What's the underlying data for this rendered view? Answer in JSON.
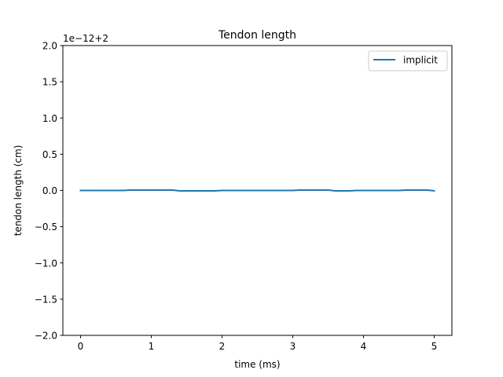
{
  "chart_data": {
    "type": "line",
    "title": "Tendon length",
    "xlabel": "time (ms)",
    "ylabel": "tendon length (cm)",
    "offset_label": "1e−12+2",
    "xlim": [
      -0.25,
      5.25
    ],
    "ylim": [
      -2.0,
      2.0
    ],
    "xticks": [
      0,
      1,
      2,
      3,
      4,
      5
    ],
    "xtick_labels": [
      "0",
      "1",
      "2",
      "3",
      "4",
      "5"
    ],
    "yticks": [
      -2.0,
      -1.5,
      -1.0,
      -0.5,
      0.0,
      0.5,
      1.0,
      1.5,
      2.0
    ],
    "ytick_labels": [
      "−2.0",
      "−1.5",
      "−1.0",
      "−0.5",
      "0.0",
      "0.5",
      "1.0",
      "1.5",
      "2.0"
    ],
    "grid": false,
    "legend_position": "top-right",
    "series": [
      {
        "name": "implicit",
        "color": "#1f77b4",
        "x": [
          0.0,
          0.6,
          0.7,
          1.3,
          1.4,
          1.9,
          2.0,
          3.0,
          3.1,
          3.5,
          3.6,
          3.8,
          3.9,
          4.5,
          4.6,
          4.9,
          5.0
        ],
        "y": [
          0.0,
          0.0,
          0.005,
          0.005,
          -0.005,
          -0.005,
          0.0,
          0.0,
          0.005,
          0.005,
          -0.005,
          -0.005,
          0.0,
          0.0,
          0.005,
          0.005,
          -0.005
        ]
      }
    ]
  }
}
